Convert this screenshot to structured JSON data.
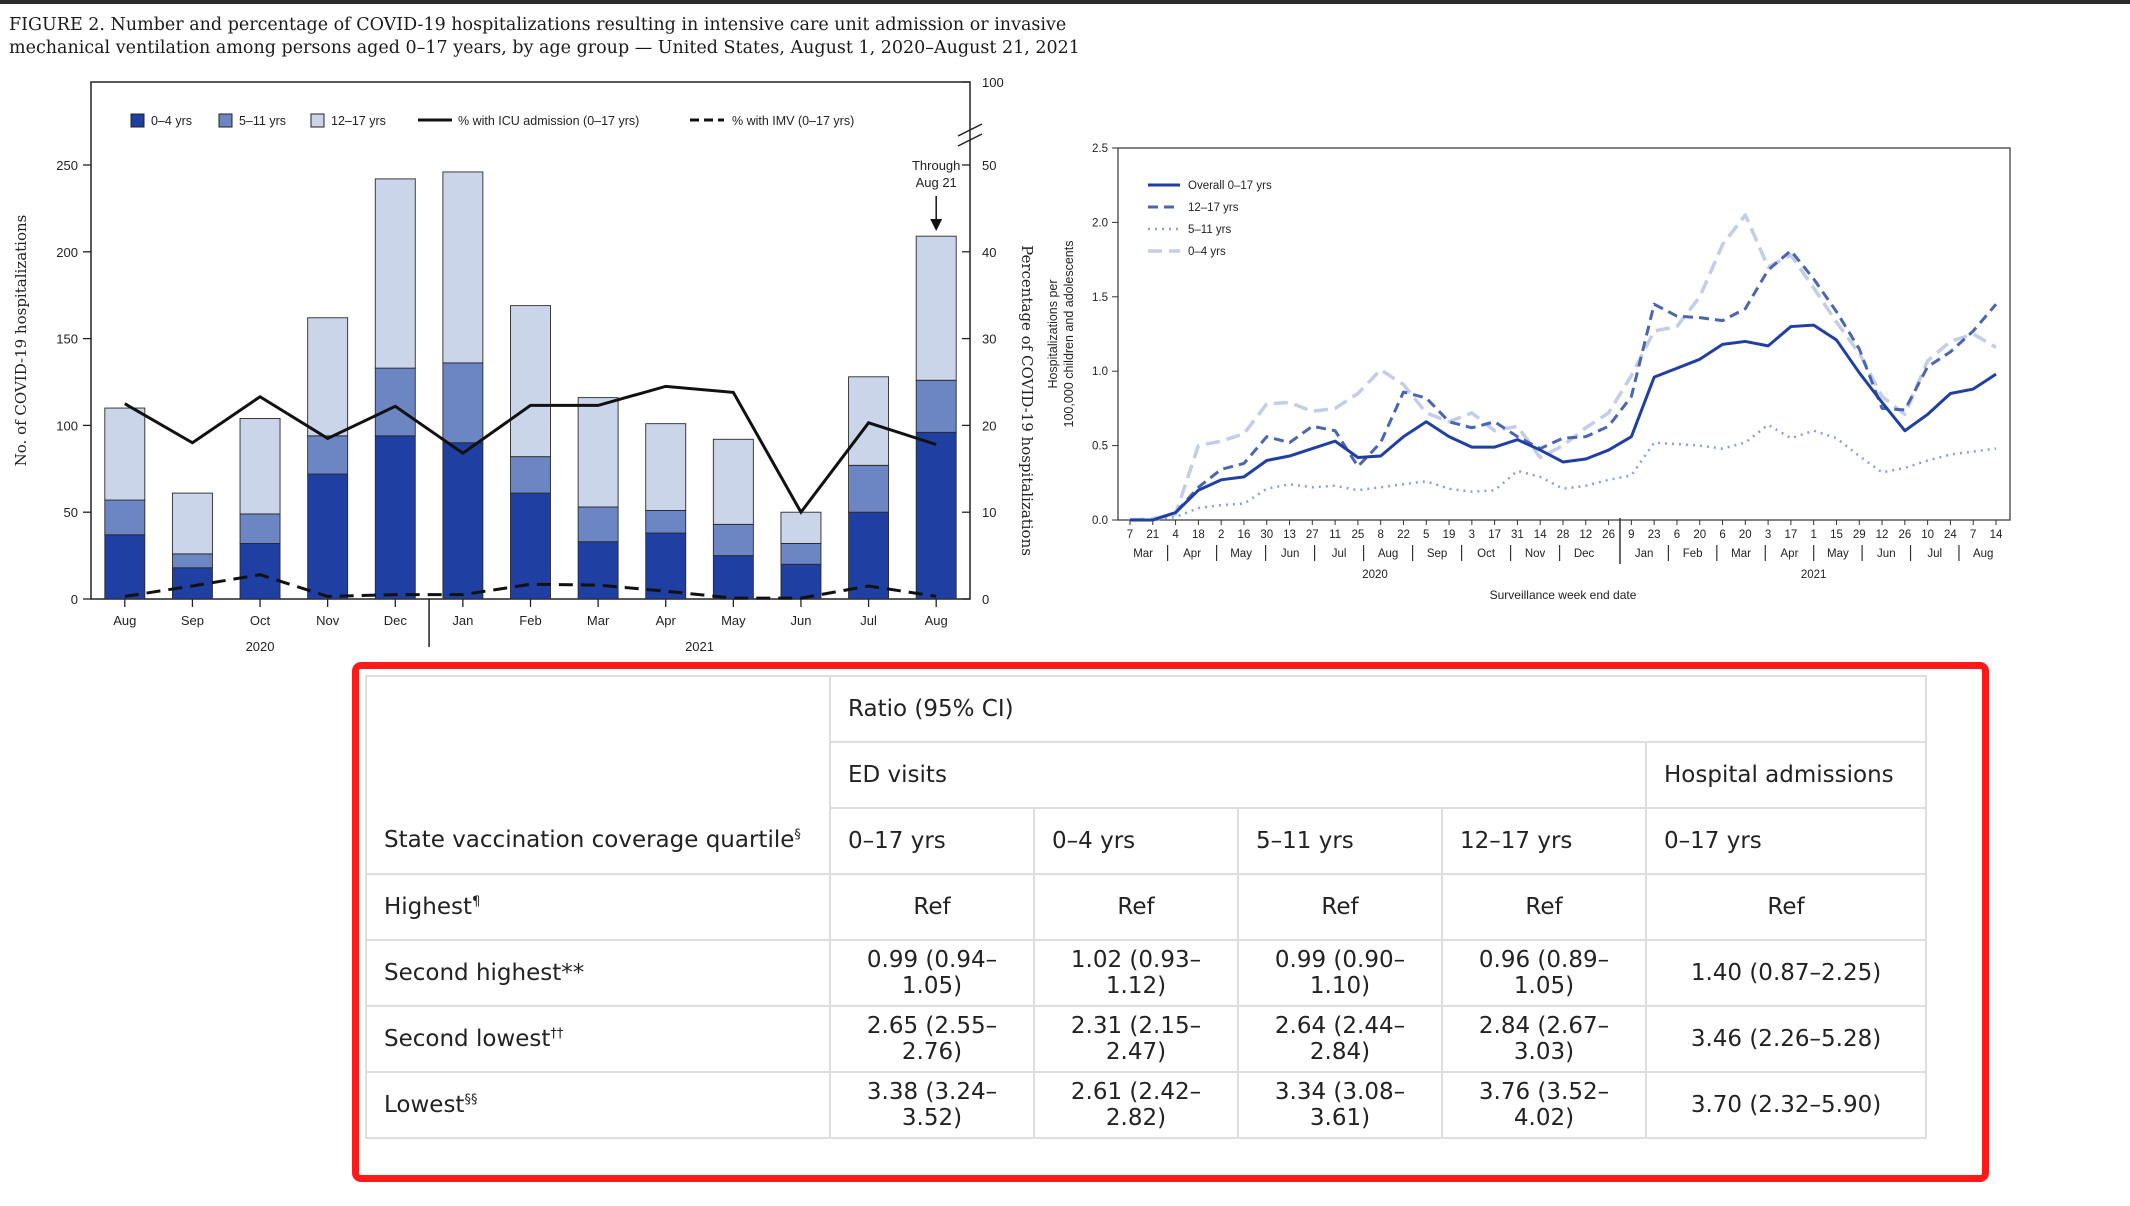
{
  "figure": {
    "caption_line1": "FIGURE 2. Number and percentage of COVID-19 hospitalizations resulting in intensive care unit admission or invasive",
    "caption_line2": "mechanical ventilation among persons aged 0–17 years, by age group — United States, August 1, 2020–August 21, 2021"
  },
  "colors": {
    "age_0_4": "#1f3fa3",
    "age_5_11": "#6c86c4",
    "age_12_17": "#cbd5ea",
    "line_overall": "#1f3fa3",
    "line_12_17": "#4a66b0",
    "line_5_11": "#8aa0d4",
    "line_0_4": "#c3cde8",
    "frame": "#ff1a1a"
  },
  "chart_data": [
    {
      "type": "bar",
      "stacked": true,
      "title": "",
      "ylabel": "No. of COVID-19 hospitalizations",
      "y2label": "Percentage of COVID-19 hospitalizations",
      "ylim": [
        0,
        250
      ],
      "y2lim": [
        0,
        50
      ],
      "y2_break_top": 100,
      "yticks": [
        0,
        50,
        100,
        150,
        200,
        250
      ],
      "y2ticks": [
        0,
        10,
        20,
        30,
        40,
        50
      ],
      "categories": [
        "Aug",
        "Sep",
        "Oct",
        "Nov",
        "Dec",
        "Jan",
        "Feb",
        "Mar",
        "Apr",
        "May",
        "Jun",
        "Jul",
        "Aug"
      ],
      "year_labels": [
        "2020",
        "2021"
      ],
      "series": [
        {
          "name": "0–4 yrs",
          "values": [
            37,
            18,
            32,
            72,
            94,
            90,
            61,
            33,
            38,
            25,
            20,
            50,
            96
          ]
        },
        {
          "name": "5–11 yrs",
          "values": [
            20,
            8,
            17,
            22,
            39,
            46,
            21,
            20,
            13,
            18,
            12,
            27,
            30
          ]
        },
        {
          "name": "12–17 yrs",
          "values": [
            53,
            35,
            55,
            68,
            109,
            110,
            87,
            63,
            50,
            49,
            18,
            51,
            83
          ]
        }
      ],
      "lines": [
        {
          "name": "% with ICU admission (0–17 yrs)",
          "style": "solid",
          "values": [
            22.5,
            18,
            23.3,
            18.5,
            22.2,
            16.8,
            22.3,
            22.3,
            24.5,
            23.8,
            10,
            20.3,
            17.8
          ]
        },
        {
          "name": "% with IMV (0–17 yrs)",
          "style": "dashed",
          "values": [
            0.3,
            1.5,
            2.8,
            0.3,
            0.5,
            0.5,
            1.7,
            1.6,
            0.9,
            0.1,
            0.1,
            1.5,
            0.3
          ]
        }
      ],
      "annotation": {
        "line1": "Through",
        "line2": "Aug 21"
      }
    },
    {
      "type": "line",
      "title": "",
      "ylabel_line1": "Hospitalizations per",
      "ylabel_line2": "100,000 children and adolescents",
      "xlabel": "Surveillance week end date",
      "ylim": [
        0,
        2.5
      ],
      "yticks": [
        "0.0",
        "0.5",
        "1.0",
        "1.5",
        "2.0",
        "2.5"
      ],
      "x_week_labels": [
        "7",
        "21",
        "4",
        "18",
        "2",
        "16",
        "30",
        "13",
        "27",
        "11",
        "25",
        "8",
        "22",
        "5",
        "19",
        "3",
        "17",
        "31",
        "14",
        "28",
        "12",
        "26",
        "9",
        "23",
        "6",
        "20",
        "6",
        "20",
        "3",
        "17",
        "1",
        "15",
        "29",
        "12",
        "26",
        "10",
        "24",
        "7",
        "14"
      ],
      "x_month_labels_2020": [
        "Mar",
        "Apr",
        "May",
        "Jun",
        "Jul",
        "Aug",
        "Sep",
        "Oct",
        "Nov",
        "Dec"
      ],
      "x_month_labels_2021": [
        "Jan",
        "Feb",
        "Mar",
        "Apr",
        "May",
        "Jun",
        "Jul",
        "Aug"
      ],
      "year_labels": [
        "2020",
        "2021"
      ],
      "series": [
        {
          "name": "Overall 0–17 yrs",
          "values": [
            0.0,
            0.0,
            0.05,
            0.2,
            0.27,
            0.29,
            0.4,
            0.43,
            0.48,
            0.53,
            0.42,
            0.43,
            0.56,
            0.66,
            0.56,
            0.49,
            0.49,
            0.54,
            0.47,
            0.39,
            0.41,
            0.47,
            0.56,
            0.96,
            1.02,
            1.08,
            1.18,
            1.2,
            1.17,
            1.3,
            1.31,
            1.21,
            0.99,
            0.79,
            0.6,
            0.71,
            0.85,
            0.88,
            0.98
          ]
        },
        {
          "name": "12–17 yrs",
          "values": [
            0.0,
            0.0,
            0.05,
            0.22,
            0.34,
            0.38,
            0.56,
            0.52,
            0.63,
            0.6,
            0.36,
            0.52,
            0.86,
            0.82,
            0.66,
            0.62,
            0.66,
            0.56,
            0.48,
            0.55,
            0.56,
            0.63,
            0.83,
            1.45,
            1.37,
            1.36,
            1.34,
            1.42,
            1.68,
            1.81,
            1.62,
            1.4,
            1.15,
            0.75,
            0.74,
            1.03,
            1.13,
            1.27,
            1.45
          ]
        },
        {
          "name": "5–11 yrs",
          "values": [
            0.0,
            0.0,
            0.02,
            0.08,
            0.1,
            0.11,
            0.21,
            0.24,
            0.22,
            0.23,
            0.2,
            0.22,
            0.24,
            0.26,
            0.21,
            0.19,
            0.2,
            0.33,
            0.29,
            0.21,
            0.23,
            0.27,
            0.3,
            0.52,
            0.51,
            0.5,
            0.48,
            0.52,
            0.64,
            0.55,
            0.6,
            0.55,
            0.43,
            0.32,
            0.35,
            0.4,
            0.44,
            0.46,
            0.48
          ]
        },
        {
          "name": "0–4 yrs",
          "values": [
            0.0,
            0.01,
            0.04,
            0.5,
            0.53,
            0.58,
            0.78,
            0.79,
            0.73,
            0.75,
            0.85,
            1.01,
            0.91,
            0.72,
            0.66,
            0.72,
            0.6,
            0.63,
            0.42,
            0.5,
            0.62,
            0.72,
            0.97,
            1.27,
            1.3,
            1.5,
            1.85,
            2.05,
            1.7,
            1.78,
            1.56,
            1.33,
            1.12,
            0.83,
            0.71,
            1.07,
            1.2,
            1.25,
            1.16
          ]
        }
      ]
    }
  ],
  "table": {
    "spanner": "Ratio (95% CI)",
    "group_ed": "ED visits",
    "group_hosp": "Hospital admissions",
    "stub_head": "State vaccination coverage quartile",
    "stub_head_sup": "§",
    "columns": [
      "0–17 yrs",
      "0–4 yrs",
      "5–11 yrs",
      "12–17 yrs",
      "0–17 yrs"
    ],
    "rows": [
      {
        "label": "Highest",
        "sup": "¶",
        "values": [
          "Ref",
          "Ref",
          "Ref",
          "Ref",
          "Ref"
        ]
      },
      {
        "label": "Second highest**",
        "sup": "",
        "values": [
          "0.99 (0.94–1.05)",
          "1.02 (0.93–1.12)",
          "0.99 (0.90–1.10)",
          "0.96 (0.89–1.05)",
          "1.40 (0.87–2.25)"
        ]
      },
      {
        "label": "Second lowest",
        "sup": "††",
        "values": [
          "2.65 (2.55–2.76)",
          "2.31 (2.15–2.47)",
          "2.64 (2.44–2.84)",
          "2.84 (2.67–3.03)",
          "3.46 (2.26–5.28)"
        ]
      },
      {
        "label": "Lowest",
        "sup": "§§",
        "values": [
          "3.38 (3.24–3.52)",
          "2.61 (2.42–2.82)",
          "3.34 (3.08–3.61)",
          "3.76 (3.52–4.02)",
          "3.70 (2.32–5.90)"
        ]
      }
    ]
  }
}
